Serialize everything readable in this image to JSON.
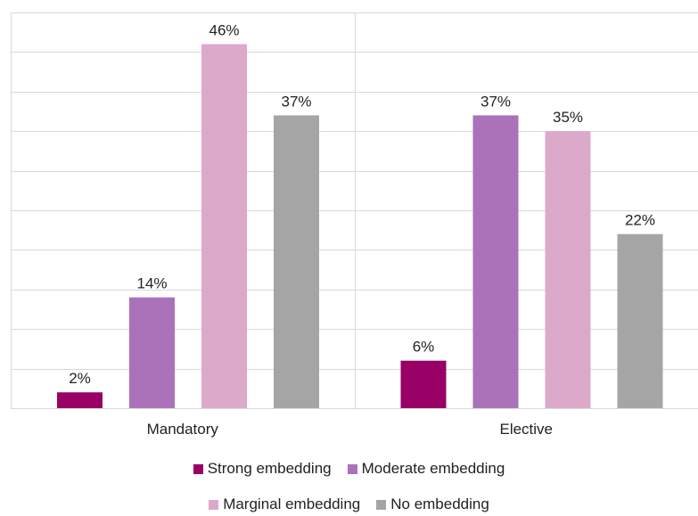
{
  "chart_data": {
    "type": "bar",
    "categories": [
      "Mandatory",
      "Elective"
    ],
    "series": [
      {
        "name": "Strong embedding",
        "values": [
          2,
          6
        ],
        "labels": [
          "2%",
          "6%"
        ],
        "color": "#990066"
      },
      {
        "name": "Moderate embedding",
        "values": [
          14,
          37
        ],
        "labels": [
          "14%",
          "37%"
        ],
        "color": "#AA72B8"
      },
      {
        "name": "Marginal embedding",
        "values": [
          46,
          35
        ],
        "labels": [
          "46%",
          "35%"
        ],
        "color": "#DCA9CA"
      },
      {
        "name": "No embedding",
        "values": [
          37,
          22
        ],
        "labels": [
          "37%",
          "22%"
        ],
        "color": "#A5A5A5"
      }
    ],
    "ylim": [
      0,
      50
    ],
    "grid": true,
    "legend_position": "bottom",
    "title": "",
    "xlabel": "",
    "ylabel": ""
  }
}
